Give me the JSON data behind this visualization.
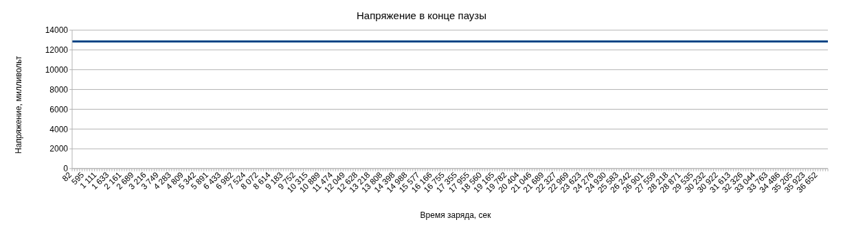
{
  "chart_data": {
    "type": "line",
    "title": "Напряжение в конце паузы",
    "xlabel": "Время заряда, сек",
    "ylabel": "Напряжение, милливольт",
    "categories": [
      "82",
      null,
      null,
      null,
      null,
      "595",
      null,
      null,
      null,
      null,
      "1 111",
      null,
      null,
      null,
      null,
      "1 633",
      null,
      null,
      null,
      null,
      "2 161",
      null,
      null,
      null,
      null,
      "2 689",
      null,
      null,
      null,
      null,
      "3 216",
      null,
      null,
      null,
      null,
      "3 749",
      null,
      null,
      null,
      null,
      "4 283",
      null,
      null,
      null,
      null,
      "4 809",
      null,
      null,
      null,
      null,
      "5 342",
      null,
      null,
      null,
      null,
      "5 891",
      null,
      null,
      null,
      null,
      "6 433",
      null,
      null,
      null,
      null,
      "6 982",
      null,
      null,
      null,
      null,
      "7 524",
      null,
      null,
      null,
      null,
      "8 072",
      null,
      null,
      null,
      null,
      "8 614",
      null,
      null,
      null,
      null,
      "9 183",
      null,
      null,
      null,
      null,
      "9 752",
      null,
      null,
      null,
      null,
      "10 315",
      null,
      null,
      null,
      null,
      "10 889",
      null,
      null,
      null,
      null,
      "11 474",
      null,
      null,
      null,
      null,
      "12 049",
      null,
      null,
      null,
      null,
      "12 628",
      null,
      null,
      null,
      null,
      "13 218",
      null,
      null,
      null,
      null,
      "13 808",
      null,
      null,
      null,
      null,
      "14 398",
      null,
      null,
      null,
      null,
      "14 988",
      null,
      null,
      null,
      null,
      "15 577",
      null,
      null,
      null,
      null,
      "16 166",
      null,
      null,
      null,
      null,
      "16 755",
      null,
      null,
      null,
      null,
      "17 355",
      null,
      null,
      null,
      null,
      "17 955",
      null,
      null,
      null,
      null,
      "18 560",
      null,
      null,
      null,
      null,
      "19 165",
      null,
      null,
      null,
      null,
      "19 782",
      null,
      null,
      null,
      null,
      "20 404",
      null,
      null,
      null,
      null,
      "21 046",
      null,
      null,
      null,
      null,
      "21 689",
      null,
      null,
      null,
      null,
      "22 327",
      null,
      null,
      null,
      null,
      "22 969",
      null,
      null,
      null,
      null,
      "23 623",
      null,
      null,
      null,
      null,
      "24 276",
      null,
      null,
      null,
      null,
      "24 930",
      null,
      null,
      null,
      null,
      "25 583",
      null,
      null,
      null,
      null,
      "26 242",
      null,
      null,
      null,
      null,
      "26 901",
      null,
      null,
      null,
      null,
      "27 559",
      null,
      null,
      null,
      null,
      "28 218",
      null,
      null,
      null,
      null,
      "28 871",
      null,
      null,
      null,
      null,
      "29 535",
      null,
      null,
      null,
      null,
      "30 232",
      null,
      null,
      null,
      null,
      "30 922",
      null,
      null,
      null,
      null,
      "31 613",
      null,
      null,
      null,
      null,
      "32 326",
      null,
      null,
      null,
      null,
      "33 044",
      null,
      null,
      null,
      null,
      "33 763",
      null,
      null,
      null,
      null,
      "34 486",
      null,
      null,
      null,
      null,
      "35 205",
      null,
      null,
      null,
      null,
      "35 923",
      null,
      null,
      null,
      null,
      "36 652",
      null,
      null,
      null,
      null
    ],
    "values": [
      12850,
      12850,
      12850,
      12850,
      12850,
      12850,
      12850,
      12850,
      12850,
      12850,
      12850,
      12850,
      12850,
      12850,
      12850,
      12850,
      12850,
      12850,
      12850,
      12850,
      12850,
      12850,
      12850,
      12850,
      12850,
      12850,
      12850,
      12850,
      12850,
      12850,
      12850,
      12850,
      12850,
      12850,
      12850,
      12850,
      12850,
      12850,
      12850,
      12850,
      12850,
      12850,
      12850,
      12850,
      12850,
      12850,
      12850,
      12850,
      12850,
      12850,
      12850,
      12850,
      12850,
      12850,
      12850,
      12850,
      12850,
      12850,
      12850,
      12850,
      12850,
      12850,
      12850,
      12850,
      12850,
      12850,
      12850,
      12850,
      12850,
      12850,
      12850,
      12850,
      12850,
      12850,
      12850,
      12850,
      12850,
      12850,
      12850,
      12850,
      12850,
      12850,
      12850,
      12850,
      12850,
      12850,
      12850,
      12850,
      12850,
      12850,
      12850,
      12850,
      12850,
      12850,
      12850,
      12850,
      12850,
      12850,
      12850,
      12850,
      12850,
      12850,
      12850,
      12850,
      12850,
      12850,
      12850,
      12850,
      12850,
      12850,
      12850,
      12850,
      12850,
      12850,
      12850,
      12850,
      12850,
      12850,
      12850,
      12850,
      12850,
      12850,
      12850,
      12850,
      12850,
      12850,
      12850,
      12850,
      12850,
      12850,
      12850,
      12850,
      12850,
      12850,
      12850,
      12850,
      12850,
      12850,
      12850,
      12850,
      12850,
      12850,
      12850,
      12850,
      12850,
      12850,
      12850,
      12850,
      12850,
      12850,
      12850,
      12850,
      12850,
      12850,
      12850,
      12850,
      12850,
      12850,
      12850,
      12850,
      12850,
      12850,
      12850,
      12850,
      12850,
      12850,
      12850,
      12850,
      12850,
      12850,
      12850,
      12850,
      12850,
      12850,
      12850,
      12850,
      12850,
      12850,
      12850,
      12850,
      12850,
      12850,
      12850,
      12850,
      12850,
      12850,
      12850,
      12850,
      12850,
      12850,
      12850,
      12850,
      12850,
      12850,
      12850,
      12850,
      12850,
      12850,
      12850,
      12850,
      12850,
      12850,
      12850,
      12850,
      12850,
      12850,
      12850,
      12850,
      12850,
      12850,
      12850,
      12850,
      12850,
      12850,
      12850,
      12850,
      12850,
      12850,
      12850,
      12850,
      12850,
      12850,
      12850,
      12850,
      12850,
      12850,
      12850,
      12850,
      12850,
      12850,
      12850,
      12850,
      12850,
      12850,
      12850,
      12850,
      12850,
      12850,
      12850,
      12850,
      12850,
      12850,
      12850,
      12850,
      12850,
      12850,
      12850,
      12850,
      12850,
      12850,
      12850,
      12850,
      12850,
      12850,
      12850,
      12850,
      12850,
      12850,
      12850,
      12850,
      12850,
      12850,
      12850,
      12850,
      12850,
      12850,
      12850,
      12850,
      12850,
      12850,
      12850,
      12850,
      12850,
      12850,
      12850,
      12850,
      12850,
      12850,
      12850,
      12850,
      12850,
      12850,
      12850,
      12850,
      12850,
      12850,
      12850,
      12850,
      12850,
      12850,
      12850,
      12850,
      12850,
      12850,
      12850,
      12850,
      12850,
      12850,
      12850,
      12850,
      12850,
      12850,
      12850,
      12850,
      12850
    ],
    "color": "#004586",
    "ylim": [
      0,
      14000
    ],
    "yticks": [
      0,
      2000,
      4000,
      6000,
      8000,
      10000,
      12000,
      14000
    ],
    "grid": "y",
    "marker": "none",
    "line_style": "solid"
  }
}
